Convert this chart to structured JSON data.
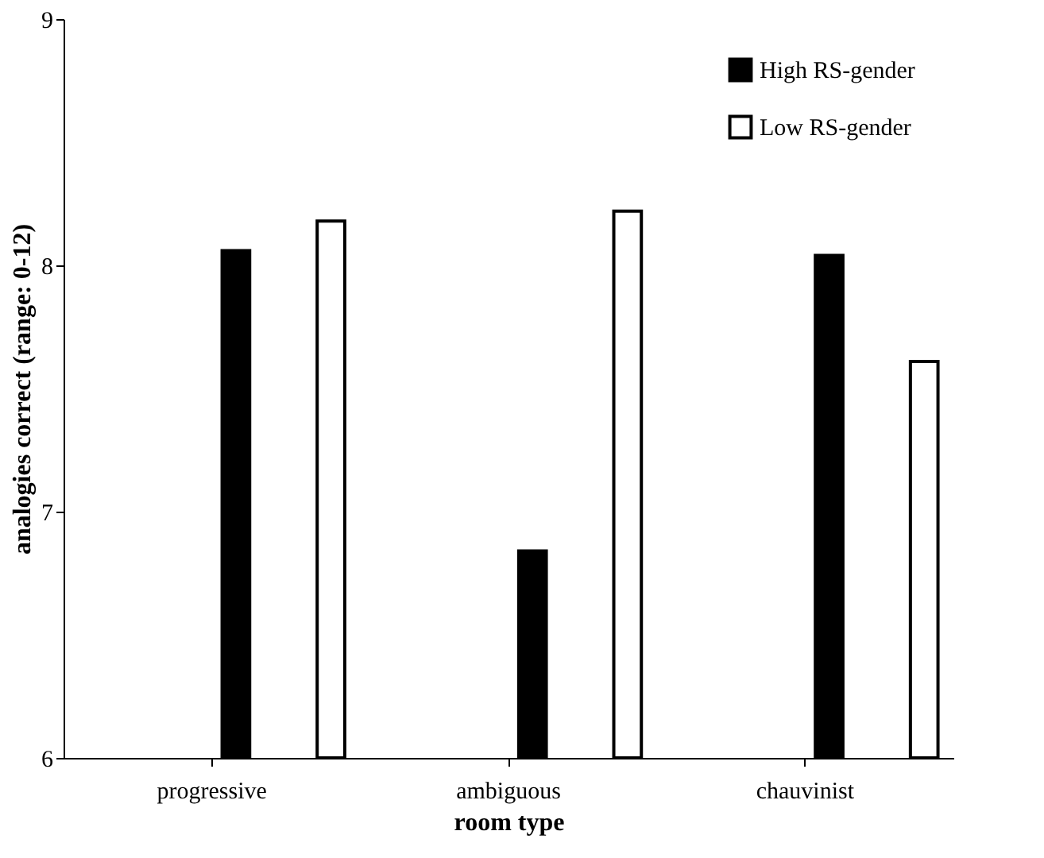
{
  "chart_data": {
    "type": "bar",
    "xlabel": "room type",
    "ylabel": "analogies correct (range: 0-12)",
    "categories": [
      "progressive",
      "ambiguous",
      "chauvinist"
    ],
    "series": [
      {
        "name": "High RS-gender",
        "color": "#000000",
        "values": [
          8.06,
          6.84,
          8.04
        ]
      },
      {
        "name": "Low RS-gender",
        "color": "#ffffff",
        "values": [
          8.18,
          8.22,
          7.61
        ]
      }
    ],
    "ylim": [
      6,
      9
    ],
    "yticks": [
      6,
      7,
      8,
      9
    ],
    "grid": false,
    "legend": "top right"
  }
}
